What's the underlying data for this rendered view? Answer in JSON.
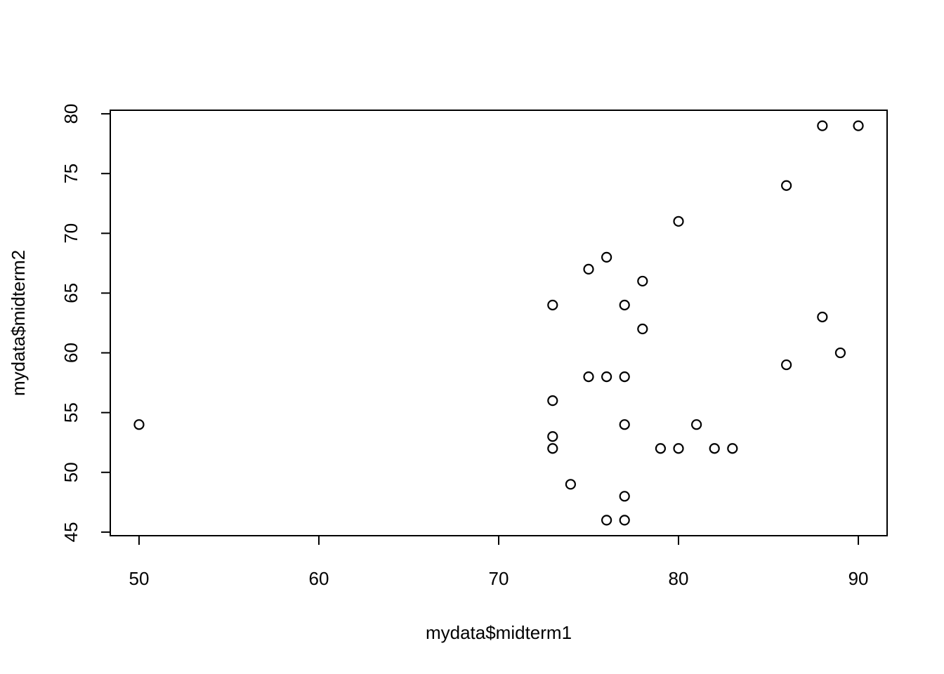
{
  "chart_data": {
    "type": "scatter",
    "xlabel": "mydata$midterm1",
    "ylabel": "mydata$midterm2",
    "xlim": [
      48.4,
      91.6
    ],
    "ylim": [
      44.7,
      80.3
    ],
    "x_ticks": [
      50,
      60,
      70,
      80,
      90
    ],
    "y_ticks": [
      45,
      50,
      55,
      60,
      65,
      70,
      75,
      80
    ],
    "grid": false,
    "marker": "open-circle",
    "points": [
      {
        "x": 50,
        "y": 54
      },
      {
        "x": 73,
        "y": 64
      },
      {
        "x": 73,
        "y": 56
      },
      {
        "x": 73,
        "y": 53
      },
      {
        "x": 73,
        "y": 52
      },
      {
        "x": 74,
        "y": 49
      },
      {
        "x": 75,
        "y": 67
      },
      {
        "x": 75,
        "y": 58
      },
      {
        "x": 76,
        "y": 68
      },
      {
        "x": 76,
        "y": 58
      },
      {
        "x": 76,
        "y": 46
      },
      {
        "x": 77,
        "y": 64
      },
      {
        "x": 77,
        "y": 58
      },
      {
        "x": 77,
        "y": 54
      },
      {
        "x": 77,
        "y": 48
      },
      {
        "x": 77,
        "y": 46
      },
      {
        "x": 78,
        "y": 66
      },
      {
        "x": 78,
        "y": 62
      },
      {
        "x": 79,
        "y": 52
      },
      {
        "x": 80,
        "y": 71
      },
      {
        "x": 80,
        "y": 52
      },
      {
        "x": 81,
        "y": 54
      },
      {
        "x": 82,
        "y": 52
      },
      {
        "x": 83,
        "y": 52
      },
      {
        "x": 86,
        "y": 74
      },
      {
        "x": 86,
        "y": 59
      },
      {
        "x": 88,
        "y": 79
      },
      {
        "x": 88,
        "y": 63
      },
      {
        "x": 89,
        "y": 60
      },
      {
        "x": 90,
        "y": 79
      }
    ]
  }
}
